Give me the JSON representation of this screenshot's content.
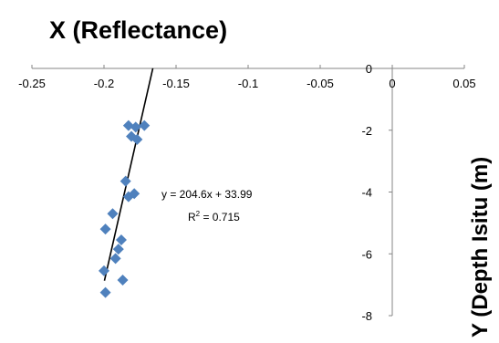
{
  "chart_data": {
    "type": "scatter",
    "title": "X (Reflectance)",
    "xlabel": "",
    "ylabel": "Y (Depth Isitu (m)",
    "xlim": [
      -0.25,
      0.05
    ],
    "ylim": [
      -8,
      0
    ],
    "x_ticks": [
      -0.25,
      -0.2,
      -0.15,
      -0.1,
      -0.05,
      0,
      0.05
    ],
    "x_tick_labels": [
      "-0.25",
      "-0.2",
      "-0.15",
      "-0.1",
      "-0.05",
      "0",
      "0.05"
    ],
    "y_ticks": [
      0,
      -2,
      -4,
      -6,
      -8
    ],
    "y_tick_labels": [
      "0",
      "-2",
      "-4",
      "-6",
      "-8"
    ],
    "x_axis_position": "top",
    "y_axis_position": "x=0",
    "grid": false,
    "legend": "none",
    "series": [
      {
        "marker": "diamond",
        "color": "#4f81bd",
        "x": [
          -0.183,
          -0.178,
          -0.172,
          -0.181,
          -0.177,
          -0.185,
          -0.183,
          -0.179,
          -0.194,
          -0.199,
          -0.188,
          -0.19,
          -0.192,
          -0.2,
          -0.187,
          -0.199
        ],
        "y": [
          -1.85,
          -1.9,
          -1.85,
          -2.2,
          -2.3,
          -3.65,
          -4.15,
          -4.05,
          -4.7,
          -5.2,
          -5.55,
          -5.85,
          -6.15,
          -6.55,
          -6.85,
          -7.25
        ]
      }
    ],
    "trendline": {
      "slope": 204.6,
      "intercept": 33.99,
      "x_range": [
        -0.1997,
        -0.1661
      ],
      "color": "#000000",
      "equation": "y = 204.6x + 33.99",
      "r2_prefix": "R",
      "r2_sup": "2",
      "r2_suffix": " = 0.715"
    }
  }
}
